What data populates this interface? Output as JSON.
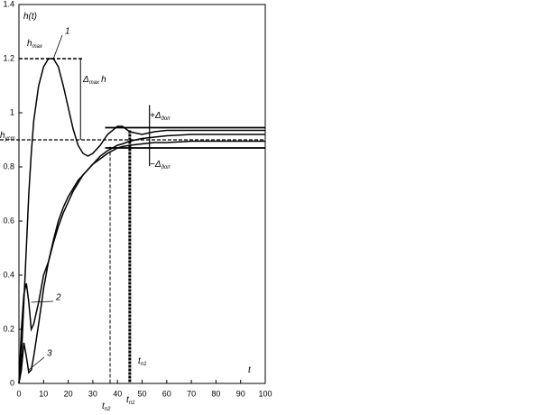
{
  "chart_data": {
    "type": "line",
    "x": [
      0,
      1,
      2,
      3,
      4,
      5,
      6,
      8,
      10,
      12,
      14,
      16,
      18,
      20,
      22,
      24,
      26,
      28,
      30,
      33,
      36,
      40,
      42,
      45,
      50,
      55,
      60,
      70,
      80,
      90,
      100
    ],
    "series": [
      {
        "name": "1",
        "color": "#000000",
        "values": [
          0,
          0.1,
          0.3,
          0.5,
          0.7,
          0.85,
          0.97,
          1.1,
          1.17,
          1.2,
          1.2,
          1.17,
          1.1,
          1.02,
          0.94,
          0.88,
          0.85,
          0.84,
          0.85,
          0.88,
          0.92,
          0.95,
          0.95,
          0.93,
          0.92,
          0.93,
          0.935,
          0.935,
          0.935,
          0.935,
          0.935
        ]
      },
      {
        "name": "2",
        "color": "#000000",
        "values": [
          0,
          0.2,
          0.33,
          0.37,
          0.3,
          0.2,
          0.22,
          0.3,
          0.4,
          0.45,
          0.52,
          0.58,
          0.63,
          0.67,
          0.71,
          0.74,
          0.77,
          0.79,
          0.81,
          0.84,
          0.86,
          0.88,
          0.885,
          0.895,
          0.905,
          0.91,
          0.915,
          0.92,
          0.92,
          0.92,
          0.92
        ]
      },
      {
        "name": "3",
        "color": "#000000",
        "values": [
          0,
          0.05,
          0.15,
          0.1,
          0.04,
          0.05,
          0.1,
          0.22,
          0.35,
          0.45,
          0.53,
          0.6,
          0.65,
          0.69,
          0.72,
          0.75,
          0.77,
          0.79,
          0.81,
          0.83,
          0.85,
          0.87,
          0.875,
          0.88,
          0.885,
          0.89,
          0.89,
          0.895,
          0.895,
          0.895,
          0.895
        ]
      }
    ],
    "xlim": [
      0,
      100
    ],
    "xticks": [
      0,
      10,
      20,
      30,
      40,
      50,
      60,
      70,
      80,
      90,
      100
    ],
    "ylim": [
      0,
      1.4
    ],
    "yticks": [
      0,
      0.2,
      0.4,
      0.6,
      0.8,
      1,
      1.2,
      1.4
    ],
    "h_max": 1.2,
    "h_steady": 0.9,
    "band_upper": 0.945,
    "band_lower": 0.87,
    "settling_times": [
      37,
      45
    ],
    "annotations": [
      {
        "text": "h(t)"
      },
      {
        "text": "h",
        "sub": "max"
      },
      {
        "text": "Δ",
        "sub": "max",
        "tail": "h"
      },
      {
        "text": "+Δ",
        "sub": "доп"
      },
      {
        "text": "h",
        "sub": "уст"
      },
      {
        "text": "−Δ",
        "sub": "доп"
      },
      {
        "text": "t",
        "sub": "п1"
      },
      {
        "text": "t"
      },
      {
        "text": "t",
        "sub": "п2"
      },
      {
        "text": "t",
        "sub": "п1"
      }
    ]
  }
}
